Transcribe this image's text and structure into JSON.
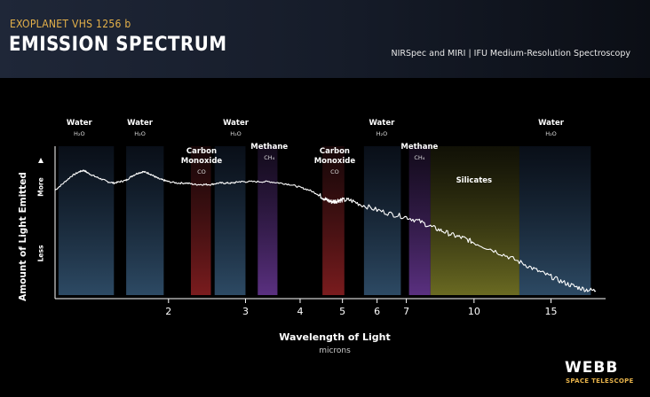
{
  "header": {
    "kicker": "EXOPLANET VHS 1256 b",
    "title": "EMISSION SPECTRUM",
    "subtitle": "NIRSpec and MIRI | IFU Medium-Resolution Spectroscopy"
  },
  "logo": {
    "word": "WEBB",
    "sub": "SPACE TELESCOPE"
  },
  "colors": {
    "background": "#000000",
    "header_band": "#1a2130",
    "accent": "#e6b24a",
    "spectrum": "#ffffff",
    "water_band": "#2a3c52",
    "co_band": "#6a1a1c",
    "methane_band": "#4a2a6a",
    "silicates_band": "#6a6a2a"
  },
  "chart_data": {
    "type": "line",
    "xlabel": "Wavelength of Light",
    "xunit": "microns",
    "ylabel": "Amount of Light Emitted",
    "y_direction_labels": {
      "high": "More",
      "low": "Less"
    },
    "x_scale": "log",
    "xlim": [
      1.1,
      20
    ],
    "x_ticks": [
      2,
      3,
      4,
      5,
      6,
      7,
      10,
      15
    ],
    "x_tick_labels": [
      "2",
      "3",
      "4",
      "5",
      "6",
      "7",
      "10",
      "15"
    ],
    "ylim": [
      0,
      1
    ],
    "grid": false,
    "bands": [
      {
        "name": "Water",
        "formula": "H₂O",
        "kind": "water",
        "range": [
          1.12,
          1.5
        ]
      },
      {
        "name": "Water",
        "formula": "H₂O",
        "kind": "water",
        "range": [
          1.6,
          1.95
        ]
      },
      {
        "name": "Carbon Monoxide",
        "formula": "CO",
        "kind": "co",
        "range": [
          2.25,
          2.5
        ]
      },
      {
        "name": "Water",
        "formula": "H₂O",
        "kind": "water",
        "range": [
          2.55,
          3.0
        ]
      },
      {
        "name": "Methane",
        "formula": "CH₄",
        "kind": "methane",
        "range": [
          3.2,
          3.55
        ]
      },
      {
        "name": "Carbon Monoxide",
        "formula": "CO",
        "kind": "co",
        "range": [
          4.5,
          5.05
        ]
      },
      {
        "name": "Water",
        "formula": "H₂O",
        "kind": "water",
        "range": [
          5.6,
          6.8
        ]
      },
      {
        "name": "Methane",
        "formula": "CH₄",
        "kind": "methane",
        "range": [
          7.1,
          7.95
        ]
      },
      {
        "name": "Silicates",
        "formula": "",
        "kind": "silicates",
        "range": [
          7.95,
          12.7
        ]
      },
      {
        "name": "Water",
        "formula": "H₂O",
        "kind": "water",
        "range": [
          12.7,
          18.5
        ]
      }
    ],
    "label_positions": [
      {
        "text": "Water",
        "formula": "H₂O",
        "row": "top",
        "x": 1.25
      },
      {
        "text": "Water",
        "formula": "H₂O",
        "row": "top",
        "x": 1.72
      },
      {
        "text": "Carbon\nMonoxide",
        "formula": "CO",
        "row": "mid",
        "x": 2.38
      },
      {
        "text": "Water",
        "formula": "H₂O",
        "row": "top",
        "x": 2.85
      },
      {
        "text": "Methane",
        "formula": "CH₄",
        "row": "mid2",
        "x": 3.4
      },
      {
        "text": "Carbon\nMonoxide",
        "formula": "CO",
        "row": "mid",
        "x": 4.8
      },
      {
        "text": "Water",
        "formula": "H₂O",
        "row": "top",
        "x": 6.15
      },
      {
        "text": "Methane",
        "formula": "CH₄",
        "row": "mid2",
        "x": 7.5
      },
      {
        "text": "Silicates",
        "formula": "",
        "row": "inner",
        "x": 10.0
      },
      {
        "text": "Water",
        "formula": "H₂O",
        "row": "top",
        "x": 15.0
      }
    ],
    "series": [
      {
        "x": [
          1.1,
          1.15,
          1.2,
          1.25,
          1.28,
          1.31,
          1.35,
          1.4,
          1.45,
          1.5,
          1.55,
          1.6,
          1.65,
          1.7,
          1.75,
          1.8,
          1.85,
          1.9,
          1.95,
          2.0,
          2.1,
          2.2,
          2.3,
          2.4,
          2.5,
          2.6,
          2.7,
          2.8,
          2.9,
          3.0,
          3.2,
          3.4,
          3.6,
          3.8,
          4.0,
          4.2,
          4.4,
          4.5,
          4.6,
          4.7,
          4.8,
          4.9,
          5.0,
          5.2,
          5.5,
          6.0,
          6.5,
          7.0,
          7.5,
          8.0,
          8.5,
          9.0,
          9.5,
          10.0,
          11.0,
          12.0,
          13.0,
          14.0,
          15.0,
          16.0,
          17.0,
          18.0,
          19.0
        ],
        "y": [
          0.74,
          0.79,
          0.84,
          0.87,
          0.88,
          0.86,
          0.84,
          0.82,
          0.8,
          0.79,
          0.8,
          0.81,
          0.84,
          0.86,
          0.87,
          0.86,
          0.84,
          0.82,
          0.81,
          0.8,
          0.79,
          0.79,
          0.78,
          0.78,
          0.78,
          0.79,
          0.79,
          0.79,
          0.8,
          0.8,
          0.8,
          0.8,
          0.79,
          0.78,
          0.76,
          0.74,
          0.71,
          0.69,
          0.67,
          0.66,
          0.66,
          0.67,
          0.67,
          0.67,
          0.64,
          0.6,
          0.57,
          0.55,
          0.52,
          0.48,
          0.45,
          0.42,
          0.4,
          0.37,
          0.32,
          0.27,
          0.22,
          0.17,
          0.13,
          0.09,
          0.06,
          0.04,
          0.03
        ]
      }
    ]
  }
}
